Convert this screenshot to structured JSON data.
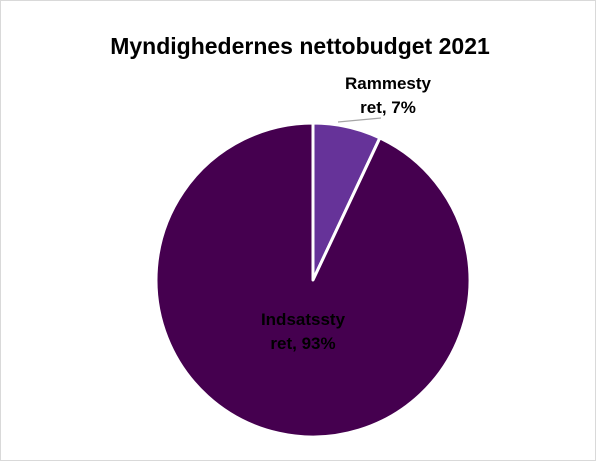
{
  "chart_data": {
    "type": "pie",
    "title": "Myndighedernes nettobudget 2021",
    "slices": [
      {
        "category": "Rammestyret",
        "value": 7,
        "color": "#663399",
        "label_lines": [
          "Rammesty",
          "ret, 7%"
        ],
        "label_color": "#000000"
      },
      {
        "category": "Indsatsstyret",
        "value": 93,
        "color": "#45004f",
        "label_lines": [
          "Indsatssty",
          "ret, 93%"
        ],
        "label_color": "#000000"
      }
    ],
    "legend": "none"
  }
}
